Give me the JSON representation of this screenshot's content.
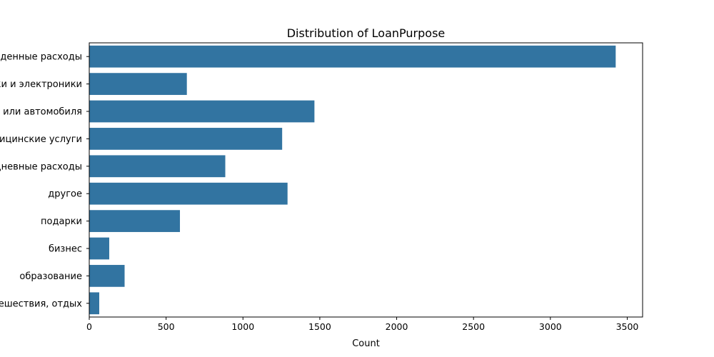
{
  "chart_data": {
    "type": "bar",
    "orientation": "horizontal",
    "title": "Distribution of LoanPurpose",
    "xlabel": "Count",
    "ylabel": "",
    "categories": [
      "непредвиденные расходы",
      "покупка техники и электроники",
      "ремонт дома или автомобиля",
      "медицинские услуги",
      "повседневные расходы",
      "другое",
      "подарки",
      "бизнес",
      "образование",
      "путешествия, отдых"
    ],
    "values": [
      3425,
      635,
      1465,
      1255,
      885,
      1290,
      590,
      130,
      230,
      65
    ],
    "xlim": [
      0,
      3600
    ],
    "xticks": [
      0,
      500,
      1000,
      1500,
      2000,
      2500,
      3000,
      3500
    ],
    "grid": false,
    "bar_color": "#3274a1"
  }
}
